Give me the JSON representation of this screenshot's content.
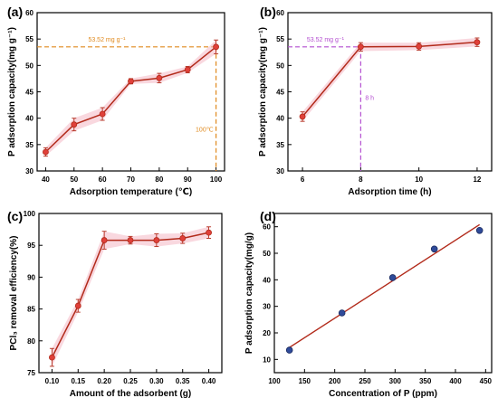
{
  "chart_data": [
    {
      "panel": "(a)",
      "type": "line",
      "x": [
        40,
        50,
        60,
        70,
        80,
        90,
        100
      ],
      "y": [
        33.6,
        38.8,
        40.8,
        47.0,
        47.6,
        49.2,
        53.52
      ],
      "err": [
        0.8,
        1.2,
        1.2,
        0.5,
        0.9,
        0.6,
        1.3
      ],
      "xlabel": "Adsorption temperature (℃)",
      "ylabel": "P adsorption capacity(mg g⁻¹)",
      "xticks": [
        "40",
        "50",
        "60",
        "70",
        "80",
        "90",
        "100"
      ],
      "yticks": [
        "30",
        "35",
        "40",
        "45",
        "50",
        "55",
        "60"
      ],
      "xlim": [
        37,
        103
      ],
      "ylim": [
        30,
        60
      ],
      "annotations": {
        "hline_label": "53.52 mg g⁻¹",
        "vline_label": "100℃",
        "hline_y": 53.52,
        "vline_x": 100
      },
      "annotation_color": "#E08A1E"
    },
    {
      "panel": "(b)",
      "type": "line",
      "x": [
        6,
        8,
        10,
        12
      ],
      "y": [
        40.3,
        53.52,
        53.6,
        54.4
      ],
      "err": [
        0.9,
        0.8,
        0.7,
        0.8
      ],
      "xlabel": "Adsorption time (h)",
      "ylabel": "P adsorption capacity(mg g⁻¹)",
      "xticks": [
        "6",
        "8",
        "10",
        "12"
      ],
      "yticks": [
        "30",
        "35",
        "40",
        "45",
        "50",
        "55",
        "60"
      ],
      "xlim": [
        5.5,
        12.5
      ],
      "ylim": [
        30,
        60
      ],
      "annotations": {
        "hline_label": "53.52 mg g⁻¹",
        "vline_label": "8 h",
        "hline_y": 53.52,
        "vline_x": 8
      },
      "annotation_color": "#B44FD0"
    },
    {
      "panel": "(c)",
      "type": "line",
      "x": [
        0.1,
        0.15,
        0.2,
        0.25,
        0.3,
        0.35,
        0.4
      ],
      "y": [
        77.4,
        85.5,
        95.8,
        95.8,
        95.8,
        96.1,
        97.0
      ],
      "err": [
        1.4,
        1.0,
        1.4,
        0.6,
        1.0,
        0.8,
        0.9
      ],
      "xlabel": "Amount of the adsorbent (g)",
      "ylabel": "PCl₃ removal efficiency(%)",
      "xticks": [
        "0.10",
        "0.15",
        "0.20",
        "0.25",
        "0.30",
        "0.35",
        "0.40"
      ],
      "yticks": [
        "75",
        "80",
        "85",
        "90",
        "95",
        "100"
      ],
      "xlim": [
        0.075,
        0.425
      ],
      "ylim": [
        75,
        100
      ]
    },
    {
      "panel": "(d)",
      "type": "scatter",
      "x": [
        125,
        212,
        296,
        365,
        440
      ],
      "y": [
        13.5,
        27.5,
        40.8,
        51.6,
        58.6
      ],
      "fit_line": {
        "x": [
          125,
          440
        ],
        "y": [
          14.5,
          60.8
        ]
      },
      "xlabel": "Concentration of P (ppm)",
      "ylabel": "P adsorption capacity(mg/g)",
      "xticks": [
        "100",
        "150",
        "200",
        "250",
        "300",
        "350",
        "400",
        "450"
      ],
      "yticks": [
        "10",
        "20",
        "30",
        "40",
        "50",
        "60"
      ],
      "xlim": [
        100,
        460
      ],
      "ylim": [
        5,
        65
      ]
    }
  ],
  "colors": {
    "line": "#B22A1A",
    "marker": "#E0403A",
    "marker_d": "#2F4B9A",
    "band": "#F4B8C4",
    "axis": "#000000"
  }
}
